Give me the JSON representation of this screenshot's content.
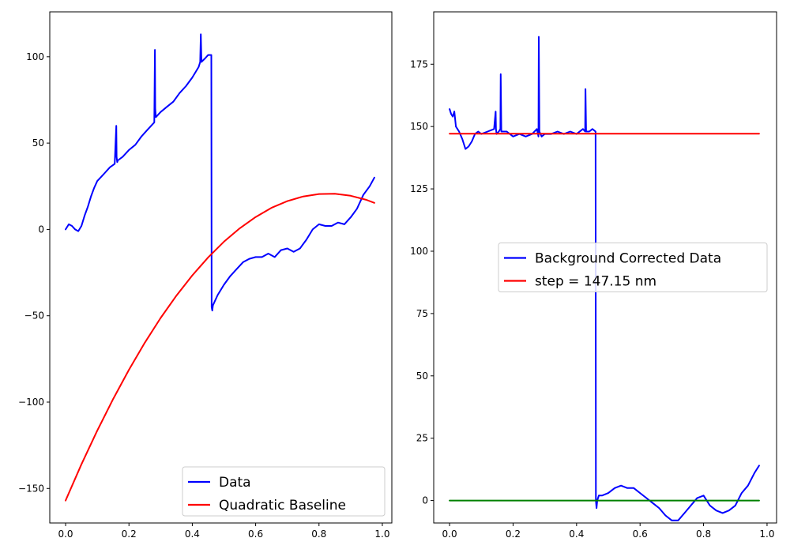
{
  "chart_data": [
    {
      "type": "line",
      "title": "",
      "xlabel": "",
      "ylabel": "",
      "xlim": [
        -0.05,
        1.03
      ],
      "ylim": [
        -170,
        126
      ],
      "xticks": [
        0.0,
        0.2,
        0.4,
        0.6,
        0.8,
        1.0
      ],
      "xtick_labels": [
        "0.0",
        "0.2",
        "0.4",
        "0.6",
        "0.8",
        "1.0"
      ],
      "yticks": [
        -150,
        -100,
        -50,
        0,
        50,
        100
      ],
      "ytick_labels": [
        "−150",
        "−100",
        "−50",
        "0",
        "50",
        "100"
      ],
      "grid": false,
      "legend_position": "lower right",
      "series": [
        {
          "name": "Data",
          "color": "#0000ff",
          "x": [
            0.0,
            0.01,
            0.02,
            0.03,
            0.04,
            0.05,
            0.06,
            0.07,
            0.08,
            0.09,
            0.1,
            0.12,
            0.14,
            0.155,
            0.16,
            0.161,
            0.163,
            0.165,
            0.18,
            0.2,
            0.22,
            0.24,
            0.26,
            0.28,
            0.282,
            0.283,
            0.285,
            0.3,
            0.32,
            0.34,
            0.36,
            0.38,
            0.4,
            0.42,
            0.425,
            0.427,
            0.429,
            0.44,
            0.45,
            0.46,
            0.461,
            0.463,
            0.465,
            0.47,
            0.48,
            0.5,
            0.52,
            0.54,
            0.56,
            0.58,
            0.6,
            0.62,
            0.64,
            0.66,
            0.68,
            0.7,
            0.72,
            0.74,
            0.76,
            0.78,
            0.8,
            0.82,
            0.84,
            0.86,
            0.88,
            0.9,
            0.92,
            0.94,
            0.96,
            0.975
          ],
          "y": [
            0,
            3,
            2,
            0,
            -1,
            2,
            8,
            13,
            19,
            24,
            28,
            32,
            36,
            38,
            60,
            42,
            39,
            40,
            42,
            46,
            49,
            54,
            58,
            62,
            104,
            70,
            65,
            68,
            71,
            74,
            79,
            83,
            88,
            94,
            97,
            113,
            97,
            99,
            101,
            101,
            -45,
            -47,
            -44,
            -42,
            -38,
            -32,
            -27,
            -23,
            -19,
            -17,
            -16,
            -16,
            -14,
            -16,
            -12,
            -11,
            -13,
            -11,
            -6,
            0,
            3,
            2,
            2,
            4,
            3,
            7,
            12,
            20,
            25,
            30
          ]
        },
        {
          "name": "Quadratic Baseline",
          "color": "#ff0000",
          "x": [
            0.0,
            0.05,
            0.1,
            0.15,
            0.2,
            0.25,
            0.3,
            0.35,
            0.4,
            0.45,
            0.5,
            0.55,
            0.6,
            0.65,
            0.7,
            0.75,
            0.8,
            0.85,
            0.9,
            0.95,
            0.975
          ],
          "y": [
            -157,
            -136.0,
            -116.5,
            -98.2,
            -81.3,
            -65.6,
            -51.3,
            -38.3,
            -26.6,
            -16.2,
            -7.1,
            0.7,
            7.2,
            12.5,
            16.4,
            19.1,
            20.5,
            20.7,
            19.5,
            17.1,
            15.4
          ]
        }
      ]
    },
    {
      "type": "line",
      "title": "",
      "xlabel": "",
      "ylabel": "",
      "xlim": [
        -0.05,
        1.03
      ],
      "ylim": [
        -9,
        196
      ],
      "xticks": [
        0.0,
        0.2,
        0.4,
        0.6,
        0.8,
        1.0
      ],
      "xtick_labels": [
        "0.0",
        "0.2",
        "0.4",
        "0.6",
        "0.8",
        "1.0"
      ],
      "yticks": [
        0,
        25,
        50,
        75,
        100,
        125,
        150,
        175
      ],
      "ytick_labels": [
        "0",
        "25",
        "50",
        "75",
        "100",
        "125",
        "150",
        "175"
      ],
      "grid": false,
      "legend_position": "center right",
      "series": [
        {
          "name": "Background Corrected Data",
          "color": "#0000ff",
          "x": [
            0.0,
            0.005,
            0.01,
            0.015,
            0.02,
            0.03,
            0.04,
            0.05,
            0.06,
            0.07,
            0.08,
            0.09,
            0.1,
            0.12,
            0.14,
            0.145,
            0.146,
            0.148,
            0.155,
            0.16,
            0.161,
            0.163,
            0.18,
            0.2,
            0.22,
            0.24,
            0.26,
            0.275,
            0.28,
            0.281,
            0.283,
            0.29,
            0.3,
            0.32,
            0.34,
            0.36,
            0.38,
            0.4,
            0.42,
            0.427,
            0.428,
            0.43,
            0.44,
            0.45,
            0.46,
            0.461,
            0.463,
            0.465,
            0.47,
            0.48,
            0.5,
            0.52,
            0.54,
            0.56,
            0.58,
            0.6,
            0.62,
            0.64,
            0.66,
            0.68,
            0.7,
            0.72,
            0.74,
            0.76,
            0.78,
            0.8,
            0.82,
            0.84,
            0.86,
            0.88,
            0.9,
            0.92,
            0.94,
            0.96,
            0.975
          ],
          "y": [
            157,
            155,
            154,
            156,
            150,
            148,
            145,
            141,
            142,
            144,
            147,
            148,
            147,
            148,
            149,
            156,
            149,
            147,
            148,
            149,
            171,
            148,
            148,
            146,
            147,
            146,
            147,
            149,
            146,
            186,
            148,
            146,
            147,
            147,
            148,
            147,
            148,
            147,
            149,
            148,
            165,
            148,
            148,
            149,
            148,
            0,
            -3,
            0,
            2,
            2,
            3,
            5,
            6,
            5,
            5,
            3,
            1,
            -1,
            -3,
            -6,
            -8,
            -8,
            -5,
            -2,
            1,
            2,
            -2,
            -4,
            -5,
            -4,
            -2,
            3,
            6,
            11,
            14
          ]
        },
        {
          "name": "step = 147.15 nm",
          "color": "#ff0000",
          "x": [
            0.0,
            0.975
          ],
          "y": [
            147.15,
            147.15
          ]
        },
        {
          "name": "",
          "color": "#008000",
          "x": [
            0.0,
            0.975
          ],
          "y": [
            0,
            0
          ]
        }
      ]
    }
  ]
}
